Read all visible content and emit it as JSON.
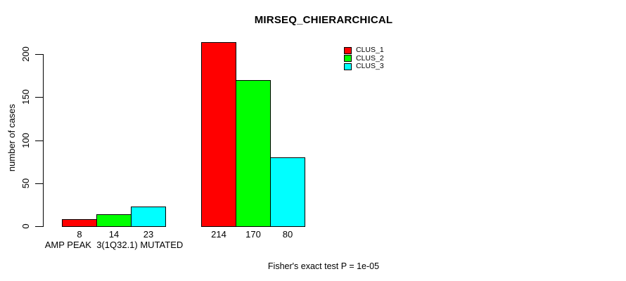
{
  "chart_data": {
    "type": "bar",
    "title": "MIRSEQ_CHIERARCHICAL",
    "ylabel": "number of cases",
    "xlabel": "",
    "ylim": [
      0,
      220
    ],
    "y_ticks": [
      0,
      50,
      100,
      150,
      200
    ],
    "grid": false,
    "legend_position": "top-right-inside",
    "categories": [
      "AMP PEAK  3(1Q32.1) MUTATED",
      ""
    ],
    "series": [
      {
        "name": "CLUS_1",
        "color": "#FF0000",
        "values": [
          8,
          214
        ]
      },
      {
        "name": "CLUS_2",
        "color": "#00FF00",
        "values": [
          14,
          170
        ]
      },
      {
        "name": "CLUS_3",
        "color": "#00FFFF",
        "values": [
          23,
          80
        ]
      }
    ],
    "bar_value_labels": [
      [
        8,
        14,
        23
      ],
      [
        214,
        170,
        80
      ]
    ],
    "annotation": "Fisher's exact test P = 1e-05",
    "colors": {
      "background": "#FFFFFF",
      "text": "#000000",
      "bar_border": "#000000"
    }
  }
}
